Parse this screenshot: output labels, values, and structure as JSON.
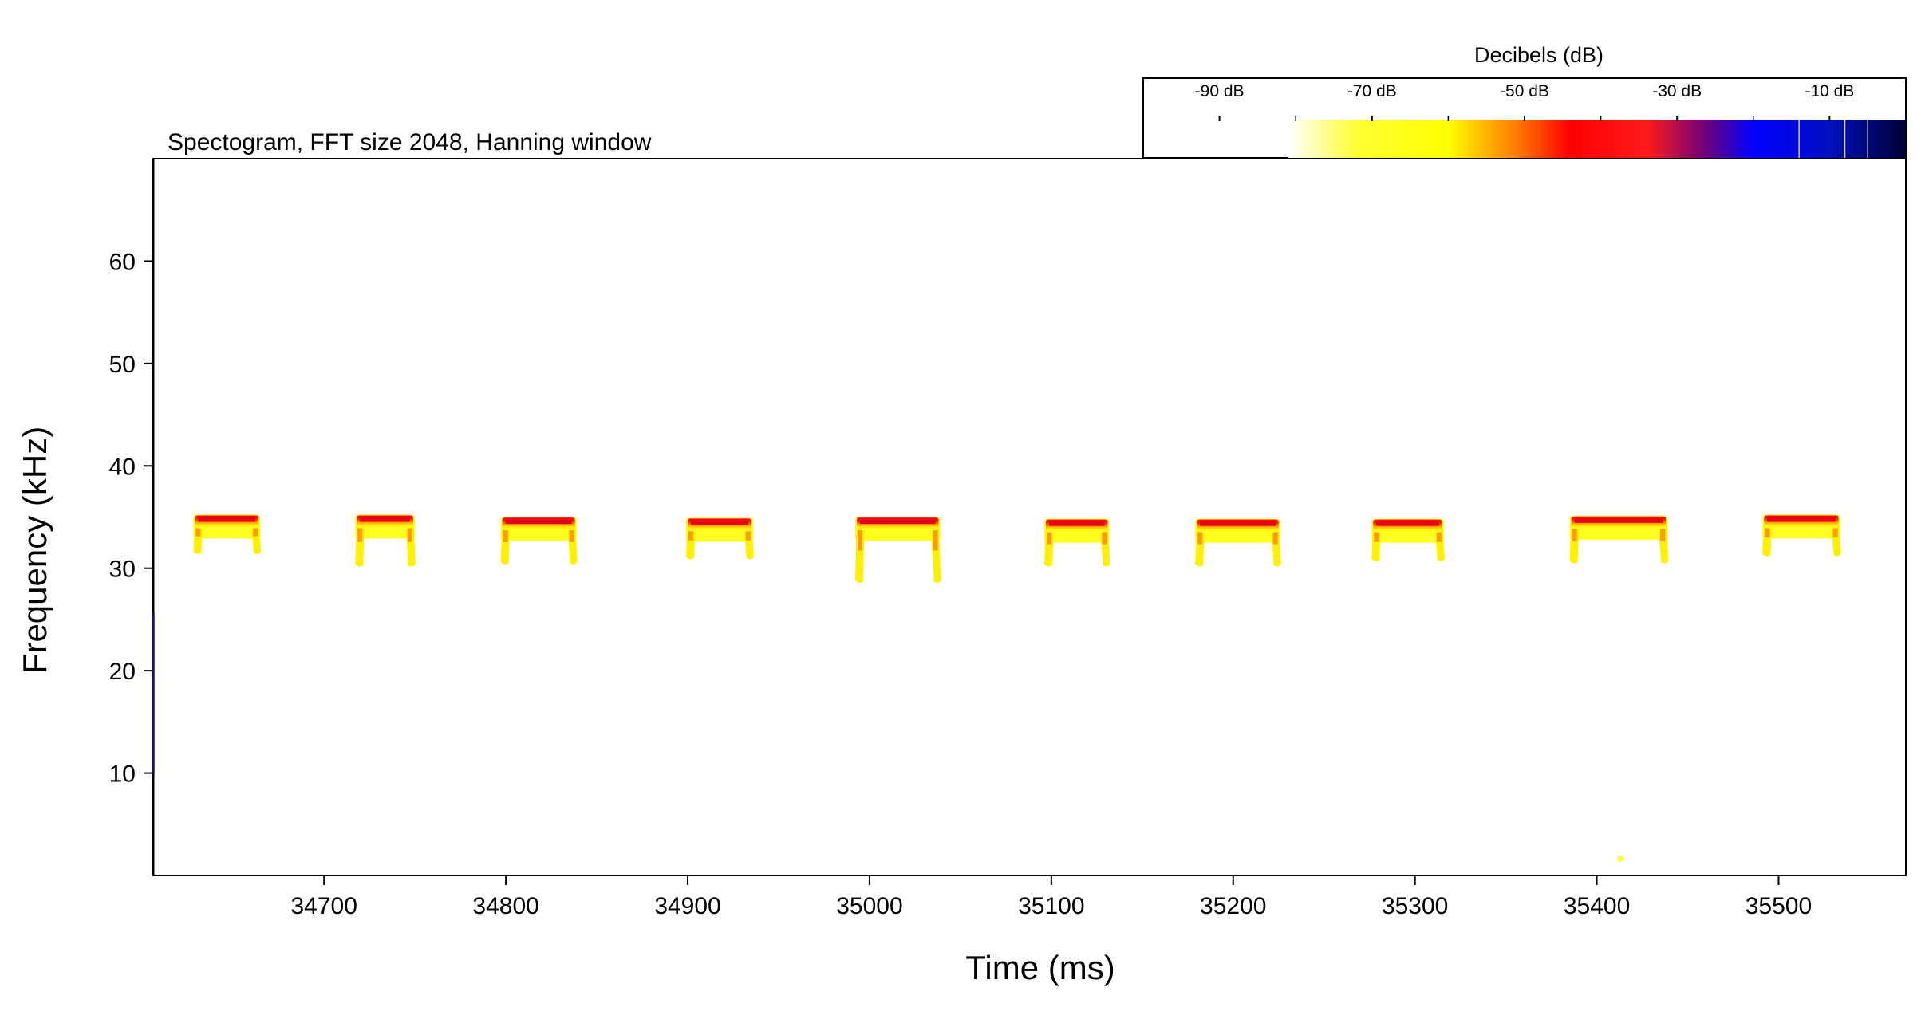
{
  "chart_data": {
    "type": "heatmap",
    "title": "Spectogram, FFT size 2048, Hanning window",
    "xlabel": "Time (ms)",
    "ylabel": "Frequency (kHz)",
    "xlim": [
      34606,
      35570
    ],
    "ylim": [
      0,
      70
    ],
    "xticks": [
      34700,
      34800,
      34900,
      35000,
      35100,
      35200,
      35300,
      35400,
      35500
    ],
    "yticks": [
      10,
      20,
      30,
      40,
      50,
      60
    ],
    "grid": false,
    "colorbar": {
      "title": "Decibels (dB)",
      "ticks": [
        "-90 dB",
        "-70 dB",
        "-50 dB",
        "-30 dB",
        "-10 dB"
      ],
      "tick_values": [
        -90,
        -70,
        -50,
        -30,
        -10
      ],
      "range_db": [
        -100,
        0
      ],
      "stops": [
        {
          "db": -100,
          "color": "#ffffff"
        },
        {
          "db": -81,
          "color": "#ffffff"
        },
        {
          "db": -72,
          "color": "#ffff33"
        },
        {
          "db": -60,
          "color": "#ffff00"
        },
        {
          "db": -51,
          "color": "#ff7a00"
        },
        {
          "db": -44,
          "color": "#ff0000"
        },
        {
          "db": -34,
          "color": "#ff1a1a"
        },
        {
          "db": -26,
          "color": "#6a0080"
        },
        {
          "db": -20,
          "color": "#0000ff"
        },
        {
          "db": -10,
          "color": "#0010c0"
        },
        {
          "db": 0,
          "color": "#000030"
        }
      ]
    },
    "calls": [
      {
        "start_ms": 34629,
        "end_ms": 34664,
        "f_top_khz": 35.0,
        "f_end_khz": 31.5
      },
      {
        "start_ms": 34718,
        "end_ms": 34749,
        "f_top_khz": 35.0,
        "f_end_khz": 30.3
      },
      {
        "start_ms": 34798,
        "end_ms": 34838,
        "f_top_khz": 34.8,
        "f_end_khz": 30.5
      },
      {
        "start_ms": 34900,
        "end_ms": 34935,
        "f_top_khz": 34.7,
        "f_end_khz": 31.0
      },
      {
        "start_ms": 34993,
        "end_ms": 35038,
        "f_top_khz": 34.8,
        "f_end_khz": 28.7
      },
      {
        "start_ms": 35097,
        "end_ms": 35131,
        "f_top_khz": 34.6,
        "f_end_khz": 30.3
      },
      {
        "start_ms": 35180,
        "end_ms": 35225,
        "f_top_khz": 34.6,
        "f_end_khz": 30.3
      },
      {
        "start_ms": 35277,
        "end_ms": 35315,
        "f_top_khz": 34.6,
        "f_end_khz": 30.8
      },
      {
        "start_ms": 35386,
        "end_ms": 35438,
        "f_top_khz": 34.9,
        "f_end_khz": 30.6
      },
      {
        "start_ms": 35492,
        "end_ms": 35533,
        "f_top_khz": 35.0,
        "f_end_khz": 31.3
      }
    ]
  }
}
